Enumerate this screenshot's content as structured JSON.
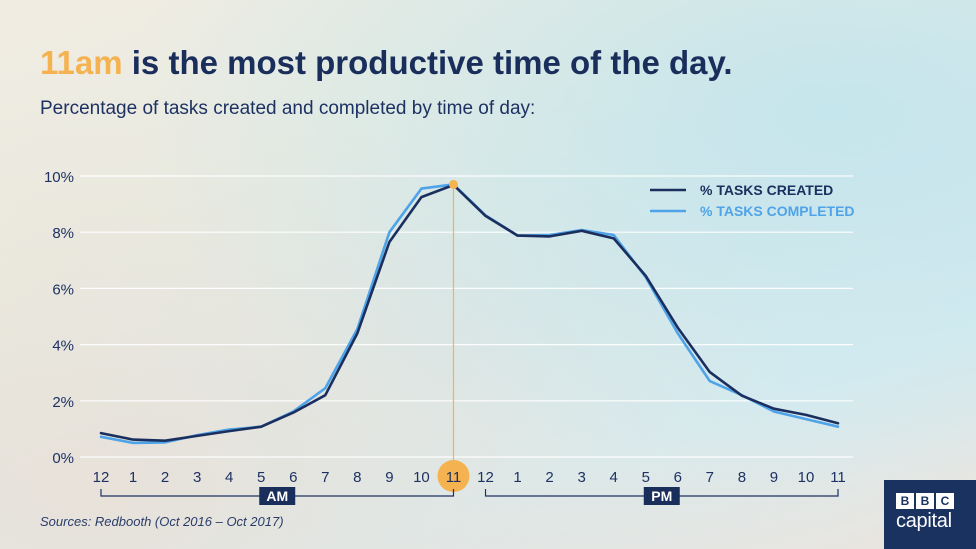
{
  "header": {
    "title_highlight": "11am",
    "title_rest": " is the most productive time of the day.",
    "subtitle": "Percentage of tasks created and completed by time of day:"
  },
  "footer": {
    "source": "Sources: Redbooth (Oct 2016 – Oct 2017)"
  },
  "logo": {
    "letters": [
      "B",
      "B",
      "C"
    ],
    "sub": "capital"
  },
  "colors": {
    "title": "#1a2e5c",
    "highlight": "#f4b350",
    "created": "#1b2f5e",
    "completed": "#4fa3e8",
    "axis_text": "#1e3163",
    "grid": "#ffffff",
    "logo_bg": "#1a3260"
  },
  "chart_data": {
    "type": "line",
    "x": [
      "12",
      "1",
      "2",
      "3",
      "4",
      "5",
      "6",
      "7",
      "8",
      "9",
      "10",
      "11",
      "12",
      "1",
      "2",
      "3",
      "4",
      "5",
      "6",
      "7",
      "8",
      "9",
      "10",
      "11"
    ],
    "ylim": [
      0,
      10
    ],
    "yticks": [
      0,
      2,
      4,
      6,
      8,
      10
    ],
    "ytick_labels": [
      "0%",
      "2%",
      "4%",
      "6%",
      "8%",
      "10%"
    ],
    "grid": true,
    "legend_position": "top-right",
    "series": [
      {
        "name": "% TASKS CREATED",
        "color": "#1b2f5e",
        "values": [
          0.85,
          0.62,
          0.58,
          0.75,
          0.92,
          1.08,
          1.58,
          2.2,
          4.4,
          7.65,
          9.25,
          9.68,
          8.58,
          7.88,
          7.85,
          8.05,
          7.78,
          6.45,
          4.6,
          3.02,
          2.18,
          1.72,
          1.5,
          1.2
        ]
      },
      {
        "name": "% TASKS COMPLETED",
        "color": "#4fa3e8",
        "values": [
          0.72,
          0.5,
          0.52,
          0.78,
          0.98,
          1.08,
          1.62,
          2.45,
          4.55,
          8.0,
          9.55,
          9.7,
          8.6,
          7.88,
          7.9,
          8.08,
          7.9,
          6.4,
          4.4,
          2.7,
          2.2,
          1.62,
          1.35,
          1.08
        ]
      }
    ],
    "highlight_index": 11,
    "groups": [
      {
        "label": "AM",
        "from": 0,
        "to": 11
      },
      {
        "label": "PM",
        "from": 12,
        "to": 23
      }
    ]
  }
}
